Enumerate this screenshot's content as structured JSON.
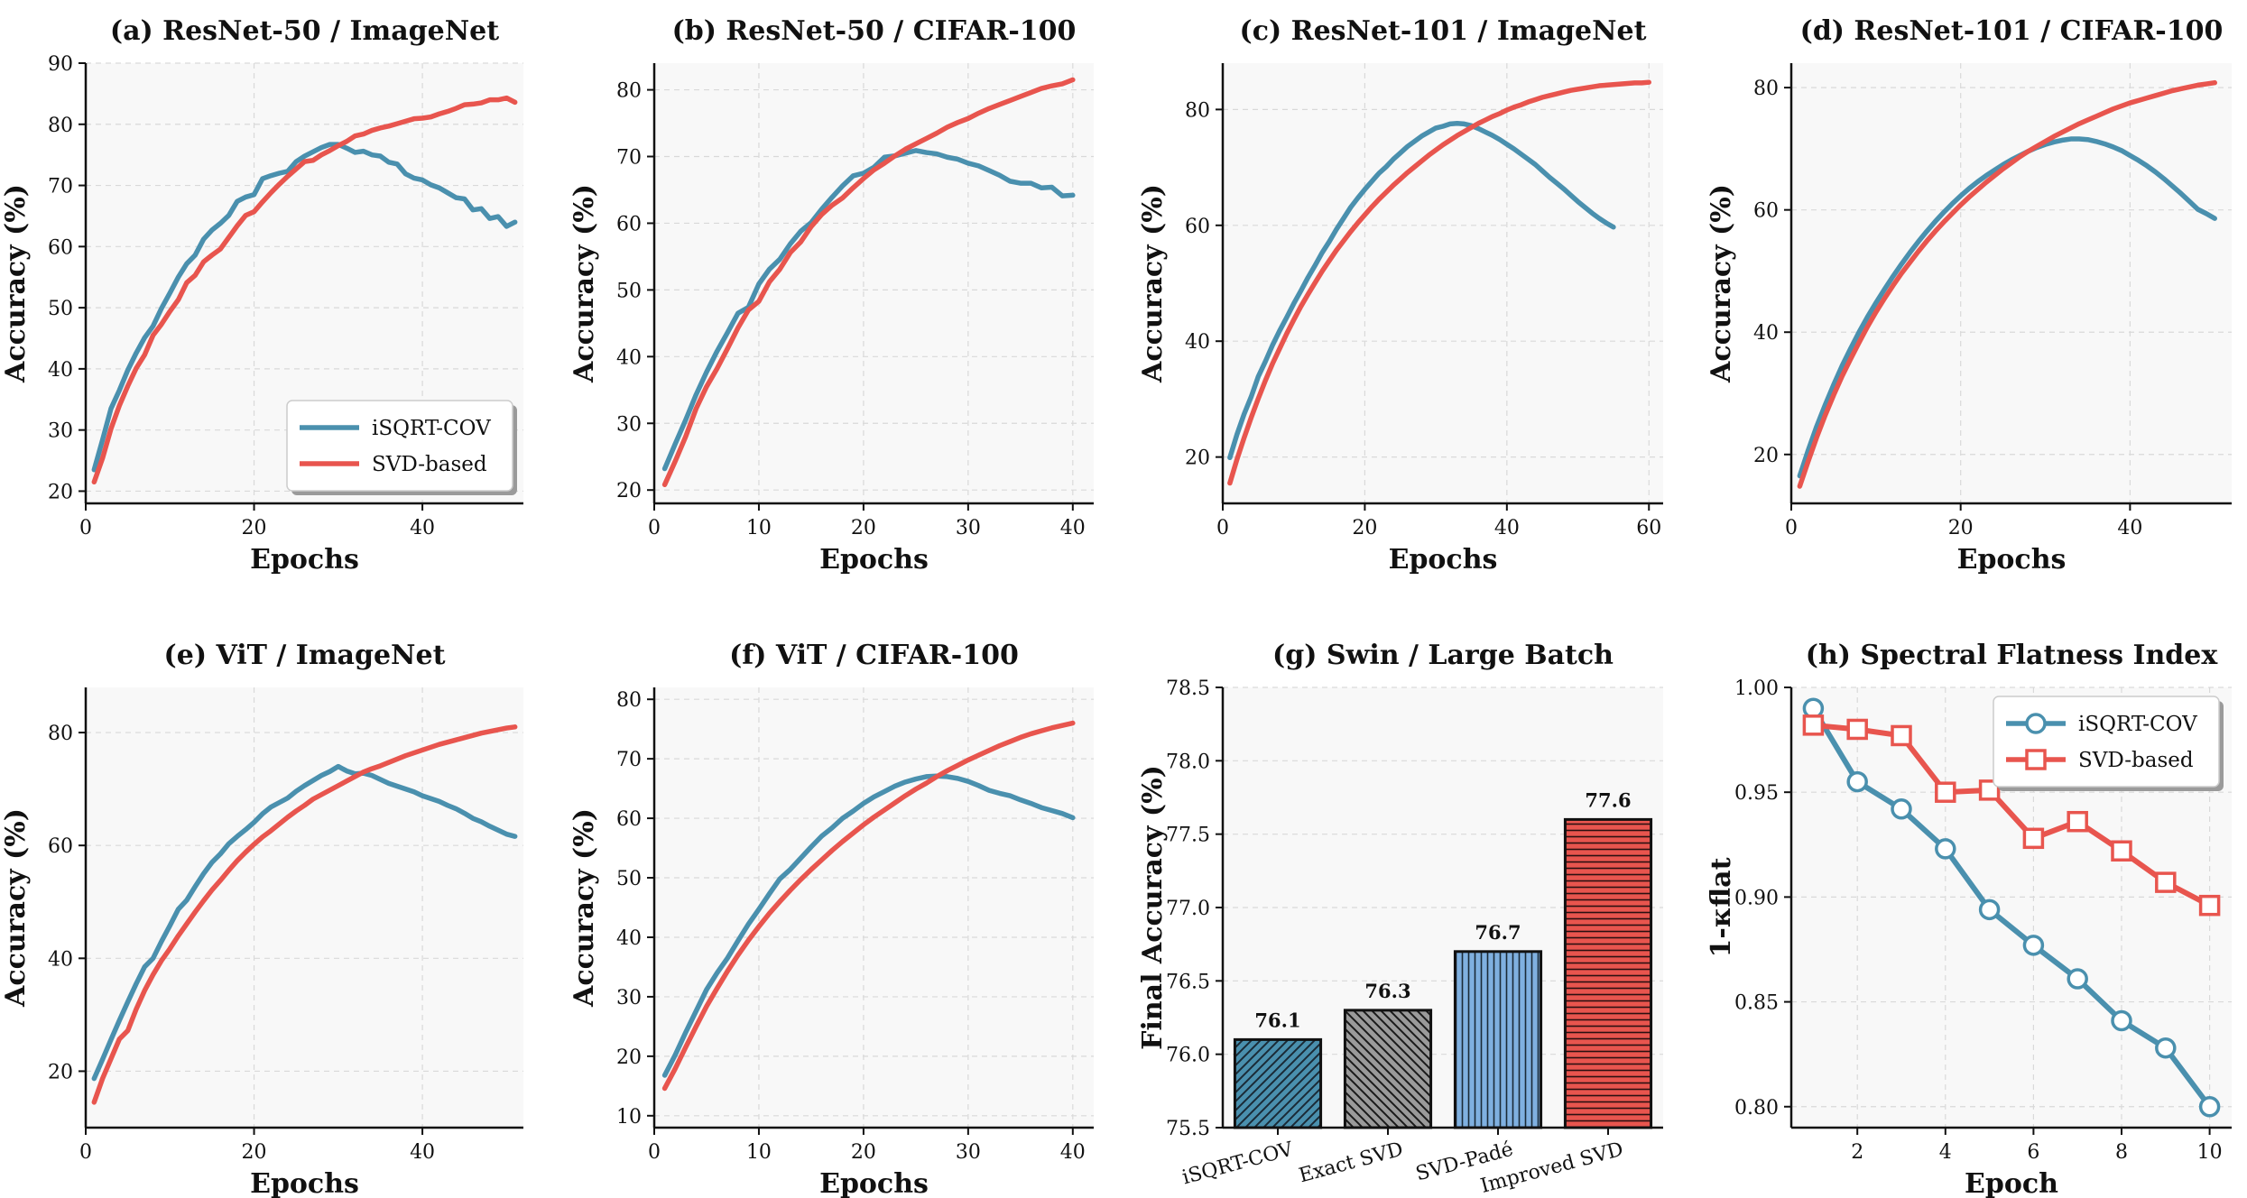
{
  "colors": {
    "blue": "#4a90ae",
    "red": "#e8554e",
    "gray": "#9a9a9a",
    "lightblue": "#7fb0e0"
  },
  "legend": {
    "isqrt": "iSQRT-COV",
    "svd": "SVD-based"
  },
  "chart_data": [
    {
      "type": "line",
      "title": "(a) ResNet-50 / ImageNet",
      "xlabel": "Epochs",
      "ylabel": "Accuracy (%)",
      "xlim": [
        0,
        52
      ],
      "ylim": [
        18,
        90
      ],
      "xticks": [
        0,
        20,
        40
      ],
      "yticks": [
        20,
        30,
        40,
        50,
        60,
        70,
        80,
        90
      ],
      "legend_position": "lower-right",
      "series": [
        {
          "name": "iSQRT-COV",
          "color": "blue",
          "values": [
            23.5,
            28.4,
            33.5,
            36.5,
            39.8,
            42.6,
            45.1,
            47.0,
            49.9,
            52.4,
            55.0,
            57.2,
            58.6,
            61.2,
            62.7,
            63.8,
            65.1,
            67.4,
            68.1,
            68.5,
            71.1,
            71.6,
            72.0,
            72.3,
            73.9,
            74.8,
            75.5,
            76.2,
            76.7,
            76.7,
            76.1,
            75.4,
            75.6,
            75.0,
            74.8,
            73.8,
            73.5,
            71.9,
            71.2,
            70.9,
            70.1,
            69.6,
            68.8,
            68.0,
            67.8,
            66.0,
            66.2,
            64.6,
            64.9,
            63.3,
            64.0
          ]
        },
        {
          "name": "SVD-based",
          "color": "red",
          "values": [
            21.5,
            25.4,
            30.2,
            34.0,
            37.2,
            40.1,
            42.3,
            45.5,
            47.3,
            49.4,
            51.3,
            54.1,
            55.3,
            57.5,
            58.6,
            59.6,
            61.5,
            63.4,
            65.1,
            65.7,
            67.3,
            68.8,
            70.2,
            71.5,
            72.7,
            73.9,
            74.1,
            75.0,
            75.7,
            76.5,
            77.2,
            78.1,
            78.4,
            79.0,
            79.4,
            79.7,
            80.1,
            80.5,
            80.9,
            81.0,
            81.2,
            81.7,
            82.1,
            82.6,
            83.2,
            83.3,
            83.5,
            84.0,
            84.0,
            84.3,
            83.6
          ]
        }
      ]
    },
    {
      "type": "line",
      "title": "(b) ResNet-50 / CIFAR-100",
      "xlabel": "Epochs",
      "ylabel": "Accuracy (%)",
      "xlim": [
        0,
        42
      ],
      "ylim": [
        18,
        84
      ],
      "xticks": [
        0,
        10,
        20,
        30,
        40
      ],
      "yticks": [
        20,
        30,
        40,
        50,
        60,
        70,
        80
      ],
      "series": [
        {
          "name": "iSQRT-COV",
          "color": "blue",
          "values": [
            23.2,
            26.9,
            30.5,
            34.3,
            37.7,
            40.8,
            43.6,
            46.5,
            47.4,
            50.9,
            53.1,
            54.6,
            56.9,
            58.8,
            60.1,
            62.1,
            63.9,
            65.6,
            67.1,
            67.5,
            68.4,
            69.9,
            70.1,
            70.5,
            70.9,
            70.6,
            70.4,
            69.9,
            69.6,
            69.0,
            68.6,
            67.9,
            67.2,
            66.3,
            66.0,
            66.0,
            65.3,
            65.4,
            64.1,
            64.2
          ]
        },
        {
          "name": "SVD-based",
          "color": "red",
          "values": [
            20.8,
            24.3,
            28.0,
            32.2,
            35.5,
            38.2,
            41.2,
            44.3,
            47.0,
            48.3,
            51.2,
            53.1,
            55.6,
            57.2,
            59.5,
            61.3,
            62.7,
            63.8,
            65.3,
            66.7,
            68.0,
            69.0,
            70.1,
            71.1,
            71.9,
            72.7,
            73.5,
            74.4,
            75.1,
            75.7,
            76.5,
            77.2,
            77.8,
            78.4,
            79.0,
            79.6,
            80.2,
            80.6,
            80.9,
            81.5
          ]
        }
      ]
    },
    {
      "type": "line",
      "title": "(c) ResNet-101 / ImageNet",
      "xlabel": "Epochs",
      "ylabel": "Accuracy (%)",
      "xlim": [
        0,
        62
      ],
      "ylim": [
        12,
        88
      ],
      "xticks": [
        0,
        20,
        40,
        60
      ],
      "yticks": [
        20,
        40,
        60,
        80
      ],
      "series": [
        {
          "name": "iSQRT-COV",
          "color": "blue",
          "values": [
            19.9,
            23.9,
            27.4,
            30.4,
            33.9,
            36.5,
            39.3,
            41.8,
            44.1,
            46.5,
            48.7,
            51.0,
            53.1,
            55.3,
            57.2,
            59.3,
            61.2,
            63.1,
            64.7,
            66.2,
            67.6,
            69.0,
            70.1,
            71.4,
            72.5,
            73.6,
            74.5,
            75.4,
            76.1,
            76.8,
            77.1,
            77.5,
            77.6,
            77.5,
            77.2,
            76.7,
            76.1,
            75.5,
            74.8,
            74.0,
            73.2,
            72.3,
            71.4,
            70.5,
            69.4,
            68.3,
            67.3,
            66.3,
            65.2,
            64.1,
            63.1,
            62.1,
            61.2,
            60.4,
            59.7
          ]
        },
        {
          "name": "SVD-based",
          "color": "red",
          "values": [
            15.5,
            19.6,
            23.3,
            26.8,
            30.1,
            33.2,
            36.1,
            38.7,
            41.3,
            43.7,
            46.0,
            48.1,
            50.1,
            52.1,
            53.9,
            55.7,
            57.3,
            58.9,
            60.4,
            61.8,
            63.2,
            64.5,
            65.7,
            66.9,
            68.0,
            69.1,
            70.1,
            71.1,
            72.1,
            73.0,
            73.9,
            74.7,
            75.5,
            76.2,
            76.9,
            77.6,
            78.2,
            78.8,
            79.3,
            79.9,
            80.4,
            80.8,
            81.3,
            81.7,
            82.1,
            82.4,
            82.7,
            83.0,
            83.3,
            83.5,
            83.7,
            83.9,
            84.1,
            84.2,
            84.3,
            84.4,
            84.5,
            84.6,
            84.6,
            84.7
          ]
        }
      ]
    },
    {
      "type": "line",
      "title": "(d) ResNet-101 / CIFAR-100",
      "xlabel": "Epochs",
      "ylabel": "Accuracy (%)",
      "xlim": [
        0,
        52
      ],
      "ylim": [
        12,
        84
      ],
      "xticks": [
        0,
        20,
        40
      ],
      "yticks": [
        20,
        40,
        60,
        80
      ],
      "series": [
        {
          "name": "iSQRT-COV",
          "color": "blue",
          "values": [
            16.5,
            20.7,
            24.6,
            28.1,
            31.4,
            34.5,
            37.3,
            40.0,
            42.5,
            44.8,
            47.0,
            49.1,
            51.1,
            53.0,
            54.8,
            56.5,
            58.1,
            59.6,
            61.0,
            62.3,
            63.5,
            64.6,
            65.6,
            66.5,
            67.4,
            68.2,
            68.9,
            69.6,
            70.2,
            70.7,
            71.1,
            71.4,
            71.6,
            71.6,
            71.5,
            71.2,
            70.8,
            70.3,
            69.7,
            68.9,
            68.1,
            67.2,
            66.2,
            65.1,
            63.9,
            62.7,
            61.4,
            60.1,
            59.4,
            58.6
          ]
        },
        {
          "name": "SVD-based",
          "color": "red",
          "values": [
            14.8,
            18.9,
            22.8,
            26.4,
            29.7,
            32.8,
            35.6,
            38.3,
            40.9,
            43.3,
            45.5,
            47.6,
            49.6,
            51.4,
            53.2,
            54.9,
            56.5,
            58.0,
            59.4,
            60.8,
            62.1,
            63.3,
            64.5,
            65.6,
            66.7,
            67.7,
            68.7,
            69.6,
            70.4,
            71.2,
            72.0,
            72.7,
            73.4,
            74.1,
            74.7,
            75.3,
            75.9,
            76.5,
            77.0,
            77.5,
            77.9,
            78.3,
            78.7,
            79.1,
            79.5,
            79.8,
            80.1,
            80.4,
            80.6,
            80.8
          ]
        }
      ]
    },
    {
      "type": "line",
      "title": "(e) ViT / ImageNet",
      "xlabel": "Epochs",
      "ylabel": "Accuracy (%)",
      "xlim": [
        0,
        52
      ],
      "ylim": [
        10,
        88
      ],
      "xticks": [
        0,
        20,
        40
      ],
      "yticks": [
        20,
        40,
        60,
        80
      ],
      "series": [
        {
          "name": "iSQRT-COV",
          "color": "blue",
          "values": [
            18.7,
            22.1,
            25.6,
            29.0,
            32.3,
            35.5,
            38.5,
            40.0,
            43.0,
            45.8,
            48.7,
            50.3,
            52.7,
            55.0,
            57.0,
            58.5,
            60.3,
            61.6,
            62.8,
            64.1,
            65.6,
            66.8,
            67.6,
            68.4,
            69.6,
            70.6,
            71.5,
            72.4,
            73.1,
            74.0,
            73.2,
            72.7,
            72.8,
            72.4,
            71.7,
            71.0,
            70.5,
            70.0,
            69.5,
            68.8,
            68.3,
            67.8,
            67.1,
            66.5,
            65.7,
            64.8,
            64.2,
            63.4,
            62.7,
            62.0,
            61.6
          ]
        },
        {
          "name": "SVD-based",
          "color": "red",
          "values": [
            14.5,
            18.7,
            22.2,
            25.7,
            27.2,
            31.0,
            34.3,
            37.1,
            39.6,
            41.7,
            44.0,
            46.1,
            48.2,
            50.2,
            52.1,
            53.8,
            55.6,
            57.3,
            58.8,
            60.2,
            61.5,
            62.6,
            63.8,
            65.0,
            66.1,
            67.1,
            68.2,
            69.0,
            69.8,
            70.6,
            71.4,
            72.2,
            73.0,
            73.6,
            74.1,
            74.7,
            75.3,
            75.9,
            76.4,
            76.9,
            77.4,
            77.9,
            78.3,
            78.7,
            79.1,
            79.5,
            79.9,
            80.2,
            80.5,
            80.8,
            81.0
          ]
        }
      ]
    },
    {
      "type": "line",
      "title": "(f) ViT / CIFAR-100",
      "xlabel": "Epochs",
      "ylabel": "Accuracy (%)",
      "xlim": [
        0,
        42
      ],
      "ylim": [
        8,
        82
      ],
      "xticks": [
        0,
        10,
        20,
        30,
        40
      ],
      "yticks": [
        10,
        20,
        30,
        40,
        50,
        60,
        70,
        80
      ],
      "series": [
        {
          "name": "iSQRT-COV",
          "color": "blue",
          "values": [
            16.8,
            20.2,
            24.0,
            27.6,
            31.2,
            34.0,
            36.5,
            39.4,
            42.2,
            44.7,
            47.3,
            49.8,
            51.4,
            53.3,
            55.2,
            57.0,
            58.4,
            60.0,
            61.2,
            62.5,
            63.6,
            64.5,
            65.4,
            66.1,
            66.6,
            67.0,
            67.1,
            67.0,
            66.7,
            66.2,
            65.5,
            64.7,
            64.2,
            63.8,
            63.1,
            62.5,
            61.8,
            61.3,
            60.8,
            60.1
          ]
        },
        {
          "name": "SVD-based",
          "color": "red",
          "values": [
            14.6,
            17.9,
            21.5,
            25.0,
            28.4,
            31.4,
            34.3,
            37.0,
            39.5,
            41.8,
            44.0,
            46.0,
            47.9,
            49.7,
            51.4,
            53.0,
            54.6,
            56.1,
            57.5,
            58.9,
            60.2,
            61.4,
            62.6,
            63.8,
            64.9,
            65.9,
            67.0,
            68.0,
            68.9,
            69.8,
            70.6,
            71.4,
            72.2,
            72.9,
            73.6,
            74.2,
            74.7,
            75.2,
            75.6,
            76.0
          ]
        }
      ]
    },
    {
      "type": "bar",
      "title": "(g) Swin / Large Batch",
      "xlabel": "",
      "ylabel": "Final Accuracy (%)",
      "ylim": [
        75.5,
        78.5
      ],
      "yticks": [
        "75.5",
        "76.0",
        "76.5",
        "77.0",
        "77.5",
        "78.0",
        "78.5"
      ],
      "categories": [
        "iSQRT-COV",
        "Exact SVD",
        "SVD-Padé",
        "Improved SVD"
      ],
      "values": [
        76.1,
        76.3,
        76.7,
        77.6
      ],
      "labels": [
        "76.1",
        "76.3",
        "76.7",
        "77.6"
      ],
      "bar_colors": [
        "blue",
        "gray",
        "lightblue",
        "red"
      ],
      "hatches": [
        "diagonal",
        "back-diagonal",
        "vertical",
        "horizontal"
      ]
    },
    {
      "type": "line",
      "title": "(h) Spectral Flatness Index",
      "xlabel": "Epoch",
      "ylabel": "1-κflat",
      "xlim": [
        0.5,
        10.5
      ],
      "ylim": [
        0.79,
        1.0
      ],
      "xticks": [
        2,
        4,
        6,
        8,
        10
      ],
      "yticks": [
        "0.80",
        "0.85",
        "0.90",
        "0.95",
        "1.00"
      ],
      "legend_position": "top-right",
      "series": [
        {
          "name": "iSQRT-COV",
          "color": "blue",
          "marker": "circle",
          "x": [
            1,
            2,
            3,
            4,
            5,
            6,
            7,
            8,
            9,
            10
          ],
          "values": [
            0.99,
            0.955,
            0.942,
            0.923,
            0.894,
            0.877,
            0.861,
            0.841,
            0.828,
            0.8
          ]
        },
        {
          "name": "SVD-based",
          "color": "red",
          "marker": "square",
          "x": [
            1,
            2,
            3,
            4,
            5,
            6,
            7,
            8,
            9,
            10
          ],
          "values": [
            0.982,
            0.98,
            0.977,
            0.95,
            0.951,
            0.928,
            0.936,
            0.922,
            0.907,
            0.896
          ]
        }
      ]
    }
  ]
}
